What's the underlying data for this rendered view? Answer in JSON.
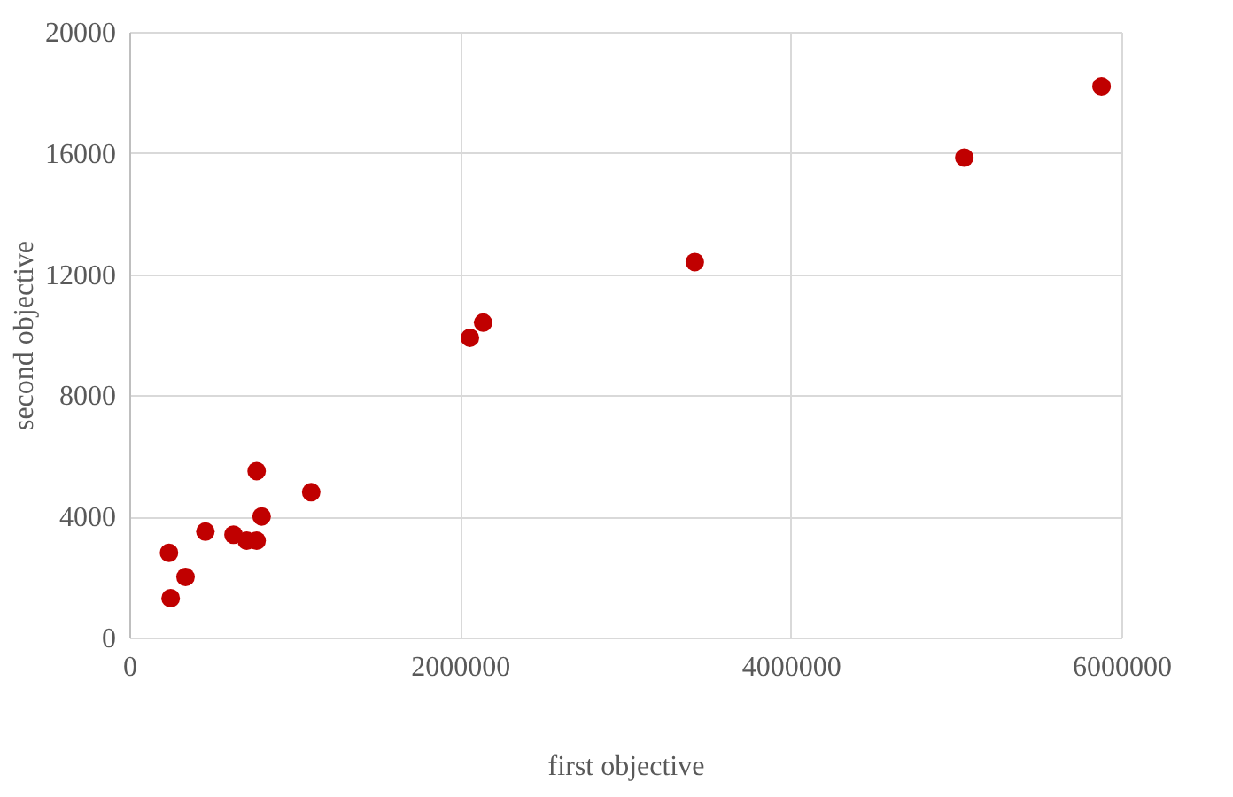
{
  "chart_data": {
    "type": "scatter",
    "xlabel": "first objective",
    "ylabel": "second objective",
    "x": [
      240000,
      250000,
      340000,
      460000,
      630000,
      710000,
      770000,
      770000,
      800000,
      1100000,
      2060000,
      2140000,
      3420000,
      5050000,
      5880000
    ],
    "series": [
      {
        "color": "#c00000",
        "values": [
          2800,
          1300,
          2000,
          3500,
          3400,
          3200,
          3200,
          5500,
          4000,
          4800,
          9900,
          10400,
          12400,
          15850,
          18200
        ]
      }
    ],
    "xlim": [
      0,
      6000000
    ],
    "xticks": [
      0,
      2000000,
      4000000,
      6000000
    ],
    "ylim": [
      0,
      20000
    ],
    "yticks": [
      0,
      4000,
      8000,
      12000,
      16000,
      20000
    ],
    "grid": true,
    "marker": "circle"
  }
}
